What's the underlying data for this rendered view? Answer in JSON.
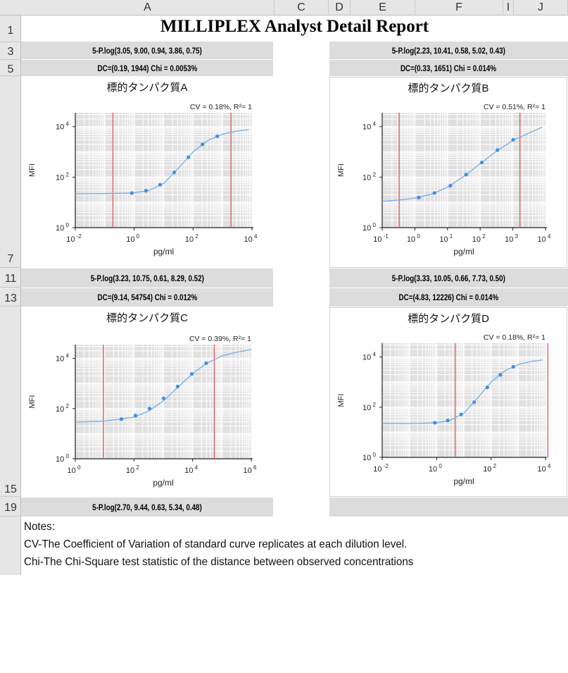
{
  "columns": [
    "A",
    "C",
    "D",
    "E",
    "F",
    "I",
    "J"
  ],
  "rows": [
    "1",
    "3",
    "5",
    "7",
    "11",
    "13",
    "15",
    "19"
  ],
  "title": "MILLIPLEX Analyst Detail Report",
  "panels": [
    {
      "fit": "5-P.log(3.05, 9.00, 0.94, 3.86, 0.75)",
      "dc": "DC=(0.19, 1944) Chi = 0.0053%"
    },
    {
      "fit": "5-P.log(2.23, 10.41, 0.58, 5.02, 0.43)",
      "dc": "DC=(0.33, 1651) Chi = 0.014%"
    },
    {
      "fit": "5-P.log(3.23, 10.75, 0.61, 8.29, 0.52)",
      "dc": "DC=(9.14, 54754) Chi = 0.012%"
    },
    {
      "fit": "5-P.log(3.33, 10.05, 0.66, 7.73, 0.50)",
      "dc": "DC=(4.83, 12226) Chi = 0.014%"
    },
    {
      "fit": "5-P.log(2.70, 9.44, 0.63, 5.34, 0.48)"
    }
  ],
  "notes": [
    "Notes:",
    "CV-The Coefficient of Variation of standard curve replicates at each dilution level.",
    "Chi-The Chi-Square test statistic of the distance between observed concentrations"
  ],
  "colors": {
    "curve": "#7eb0e6",
    "point": "#3d8fe6",
    "limit": "#e05050",
    "plot_bg": "#e0e0e0"
  },
  "chart_data": [
    {
      "type": "scatter",
      "title": "標的タンパク質A",
      "stats": "CV = 0.18%,  R²= 1",
      "xlabel": "pg/ml",
      "ylabel": "MFI",
      "xscale": "log",
      "yscale": "log",
      "xlim_log10": [
        -2,
        4
      ],
      "ylim_log10": [
        0,
        4.55
      ],
      "x_ticks_exp": [
        -2,
        0,
        2,
        4
      ],
      "y_ticks_exp": [
        0,
        2,
        4
      ],
      "points_log10": [
        [
          -0.08,
          1.37
        ],
        [
          0.4,
          1.46
        ],
        [
          0.88,
          1.7
        ],
        [
          1.36,
          2.19
        ],
        [
          1.84,
          2.79
        ],
        [
          2.32,
          3.3
        ],
        [
          2.82,
          3.62
        ]
      ],
      "curve_log10": [
        [
          -2,
          1.34
        ],
        [
          -0.74,
          1.35
        ],
        [
          0,
          1.38
        ],
        [
          0.5,
          1.47
        ],
        [
          1,
          1.75
        ],
        [
          1.5,
          2.35
        ],
        [
          2,
          3.0
        ],
        [
          2.5,
          3.45
        ],
        [
          3,
          3.7
        ],
        [
          3.5,
          3.83
        ],
        [
          3.9,
          3.88
        ]
      ],
      "limits_pgml": [
        0.19,
        1944
      ]
    },
    {
      "type": "scatter",
      "title": "標的タンパク質B",
      "stats": "CV = 0.51%,  R²= 1",
      "xlabel": "pg/ml",
      "ylabel": "MFI",
      "xscale": "log",
      "yscale": "log",
      "xlim_log10": [
        -1,
        4
      ],
      "ylim_log10": [
        0,
        4.55
      ],
      "x_ticks_exp": [
        -1,
        0,
        1,
        2,
        3,
        4
      ],
      "y_ticks_exp": [
        0,
        2,
        4
      ],
      "points_log10": [
        [
          0.12,
          1.19
        ],
        [
          0.6,
          1.37
        ],
        [
          1.09,
          1.66
        ],
        [
          1.57,
          2.1
        ],
        [
          2.05,
          2.58
        ],
        [
          2.53,
          3.07
        ],
        [
          3.01,
          3.48
        ]
      ],
      "curve_log10": [
        [
          -1,
          1.04
        ],
        [
          -0.5,
          1.09
        ],
        [
          0,
          1.17
        ],
        [
          0.5,
          1.32
        ],
        [
          1,
          1.6
        ],
        [
          1.5,
          2.03
        ],
        [
          2,
          2.53
        ],
        [
          2.5,
          3.03
        ],
        [
          3,
          3.45
        ],
        [
          3.5,
          3.75
        ],
        [
          3.9,
          3.98
        ]
      ],
      "limits_pgml": [
        0.33,
        1651
      ]
    },
    {
      "type": "scatter",
      "title": "標的タンパク質C",
      "stats": "CV = 0.39%,  R²= 1",
      "xlabel": "pg/ml",
      "ylabel": "MFI",
      "xscale": "log",
      "yscale": "log",
      "xlim_log10": [
        0,
        6
      ],
      "ylim_log10": [
        0,
        4.55
      ],
      "x_ticks_exp": [
        0,
        2,
        4,
        6
      ],
      "y_ticks_exp": [
        0,
        2,
        4
      ],
      "points_log10": [
        [
          1.57,
          1.58
        ],
        [
          2.05,
          1.72
        ],
        [
          2.53,
          2.0
        ],
        [
          3.01,
          2.41
        ],
        [
          3.49,
          2.88
        ],
        [
          3.97,
          3.38
        ],
        [
          4.46,
          3.81
        ]
      ],
      "curve_log10": [
        [
          0,
          1.46
        ],
        [
          1,
          1.5
        ],
        [
          2,
          1.66
        ],
        [
          2.5,
          1.9
        ],
        [
          3,
          2.3
        ],
        [
          3.5,
          2.85
        ],
        [
          4,
          3.4
        ],
        [
          4.5,
          3.82
        ],
        [
          5,
          4.1
        ],
        [
          5.5,
          4.25
        ],
        [
          6,
          4.35
        ]
      ],
      "limits_pgml": [
        9.14,
        54754
      ]
    },
    {
      "type": "scatter",
      "title": "標的タンパク質D",
      "stats": "CV = 0.18%,  R²= 1",
      "xlabel": "pg/ml",
      "ylabel": "MFI",
      "xscale": "log",
      "yscale": "log",
      "xlim_log10": [
        -2,
        4
      ],
      "ylim_log10": [
        0,
        4.55
      ],
      "x_ticks_exp": [
        -2,
        0,
        2,
        4
      ],
      "y_ticks_exp": [
        0,
        2,
        4
      ],
      "points_log10": [
        [
          -0.06,
          1.38
        ],
        [
          0.41,
          1.47
        ],
        [
          0.9,
          1.71
        ],
        [
          1.38,
          2.2
        ],
        [
          1.86,
          2.79
        ],
        [
          2.34,
          3.29
        ],
        [
          2.82,
          3.61
        ]
      ],
      "curve_log10": [
        [
          -2,
          1.34
        ],
        [
          -0.71,
          1.35
        ],
        [
          0,
          1.38
        ],
        [
          0.5,
          1.48
        ],
        [
          1,
          1.76
        ],
        [
          1.5,
          2.36
        ],
        [
          2,
          3.0
        ],
        [
          2.5,
          3.45
        ],
        [
          3,
          3.7
        ],
        [
          3.5,
          3.83
        ],
        [
          3.9,
          3.88
        ]
      ],
      "limits_pgml": [
        4.83,
        12226
      ]
    }
  ]
}
